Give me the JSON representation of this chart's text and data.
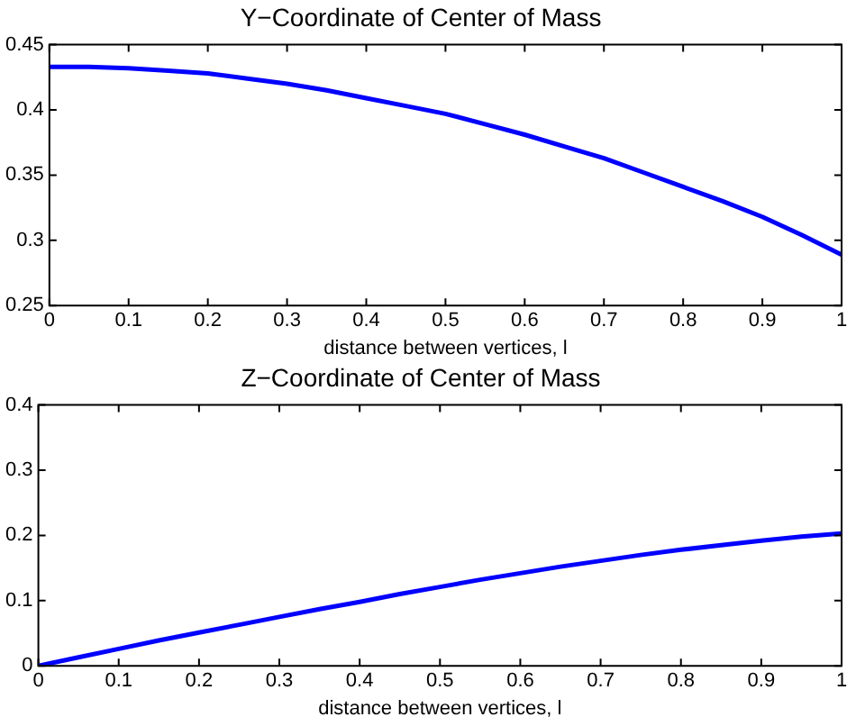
{
  "chart_data": [
    {
      "type": "line",
      "title": "Y−Coordinate of Center of Mass",
      "xlabel": "distance between vertices, l",
      "x": [
        0,
        0.05,
        0.1,
        0.15,
        0.2,
        0.25,
        0.3,
        0.35,
        0.4,
        0.45,
        0.5,
        0.55,
        0.6,
        0.65,
        0.7,
        0.75,
        0.8,
        0.85,
        0.9,
        0.95,
        1
      ],
      "series": [
        {
          "color": "#0000ff",
          "values": [
            0.433,
            0.433,
            0.432,
            0.43,
            0.428,
            0.424,
            0.42,
            0.415,
            0.409,
            0.403,
            0.397,
            0.389,
            0.381,
            0.372,
            0.363,
            0.352,
            0.341,
            0.33,
            0.318,
            0.304,
            0.289
          ]
        }
      ],
      "xlim": [
        0,
        1
      ],
      "xticks": [
        0,
        0.1,
        0.2,
        0.3,
        0.4,
        0.5,
        0.6,
        0.7,
        0.8,
        0.9,
        1
      ],
      "ylim": [
        0.25,
        0.45
      ],
      "yticks": [
        0.25,
        0.3,
        0.35,
        0.4,
        0.45
      ],
      "grid": false,
      "legend": false
    },
    {
      "type": "line",
      "title": "Z−Coordinate of Center of Mass",
      "xlabel": "distance between vertices, l",
      "x": [
        0,
        0.05,
        0.1,
        0.15,
        0.2,
        0.25,
        0.3,
        0.35,
        0.4,
        0.45,
        0.5,
        0.55,
        0.6,
        0.65,
        0.7,
        0.75,
        0.8,
        0.85,
        0.9,
        0.95,
        1
      ],
      "series": [
        {
          "color": "#0000ff",
          "values": [
            0,
            0.013,
            0.026,
            0.039,
            0.051,
            0.063,
            0.075,
            0.087,
            0.098,
            0.11,
            0.121,
            0.132,
            0.142,
            0.152,
            0.161,
            0.17,
            0.178,
            0.185,
            0.192,
            0.198,
            0.203
          ]
        }
      ],
      "xlim": [
        0,
        1
      ],
      "xticks": [
        0,
        0.1,
        0.2,
        0.3,
        0.4,
        0.5,
        0.6,
        0.7,
        0.8,
        0.9,
        1
      ],
      "ylim": [
        0,
        0.4
      ],
      "yticks": [
        0,
        0.1,
        0.2,
        0.3,
        0.4
      ],
      "grid": false,
      "legend": false
    }
  ]
}
